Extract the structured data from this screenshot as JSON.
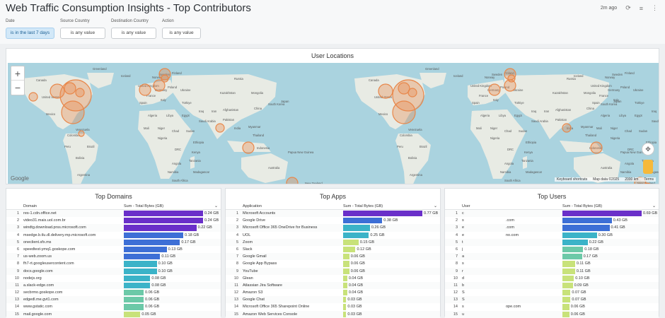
{
  "header": {
    "title": "Web Traffic Consumption Insights - Top Contributors",
    "updated": "2m ago"
  },
  "filters": [
    {
      "label": "Date",
      "value": "is in the last 7 days"
    },
    {
      "label": "Source Country",
      "value": "is any value"
    },
    {
      "label": "Destination Country",
      "value": "is any value"
    },
    {
      "label": "Action",
      "value": "is any value"
    }
  ],
  "map": {
    "title": "User Locations",
    "google": "Google",
    "footer": {
      "shortcuts": "Keyboard shortcuts",
      "mapdata": "Map data ©2025",
      "scale": "2000 km",
      "terms": "Terms"
    },
    "labels": {
      "world_a": [
        "Canada",
        "United States",
        "Mexico",
        "Venezuela",
        "Colombia",
        "Peru",
        "Brazil",
        "Bolivia",
        "Argentina",
        "Greenland",
        "Iceland",
        "Sweden",
        "Finland",
        "Norway",
        "United Kingdom",
        "Poland",
        "Ukraine",
        "Germany",
        "France",
        "Spain",
        "Italy",
        "Türkiye",
        "Algeria",
        "Libya",
        "Egypt",
        "Mali",
        "Niger",
        "Chad",
        "Sudan",
        "Nigeria",
        "Ethiopia",
        "DRC",
        "Kenya",
        "Tanzania",
        "Angola",
        "Namibia",
        "South Africa",
        "Madagascar",
        "Saudi Arabia",
        "Iraq",
        "Iran",
        "Afghanistan",
        "Pakistan",
        "India",
        "Kazakhstan",
        "Mongolia",
        "China",
        "Russia",
        "South Korea",
        "Japan",
        "Myanmar",
        "Thailand",
        "Indonesia",
        "Papua New Guinea",
        "Australia",
        "New Zealand"
      ],
      "world_b": [
        "Canada",
        "United States",
        "Mexico",
        "Venezuela",
        "Colombia",
        "Peru",
        "Brazil",
        "Bolivia",
        "Argentina",
        "Greenland",
        "Iceland",
        "Sweden",
        "Finland",
        "Norway",
        "United Kingdom",
        "Poland",
        "Ukraine",
        "Germany",
        "France",
        "Spain",
        "Italy",
        "Türkiye",
        "Algeria",
        "Libya",
        "Egypt",
        "Mali",
        "Niger",
        "Chad",
        "Sudan",
        "Nigeria",
        "Ethiopia",
        "DRC",
        "Kenya",
        "Tanzania",
        "Angola",
        "Namibia",
        "South Africa",
        "Madagascar",
        "Saudi Arabia",
        "Iraq",
        "Iran",
        "Afghanistan",
        "Pakistan",
        "India",
        "Kazakhstan",
        "Mongolia",
        "China",
        "Russia",
        "South Korea",
        "Japan",
        "Myanmar",
        "Thailand",
        "Indonesia",
        "Papua New Guinea",
        "Australia",
        "New Zealand"
      ],
      "world_c": [
        "Greenland",
        "Iceland",
        "Sweden",
        "Finland",
        "Norway",
        "United Kingdom",
        "Poland",
        "Ukraine",
        "Germany",
        "France",
        "Spain",
        "Italy",
        "Türkiye",
        "Algeria",
        "Libya",
        "Egypt",
        "Mali",
        "Niger",
        "Chad",
        "Sudan",
        "Nigeria",
        "Ethiopia",
        "DRC",
        "Kenya",
        "Tanzania",
        "Angola",
        "Namibia",
        "South Africa",
        "Madagascar",
        "Saudi Arabia",
        "Iraq",
        "Iran",
        "Afghanistan",
        "Pakistan",
        "India",
        "Kazakhstan",
        "Mongolia",
        "China",
        "Russia",
        "South Korea",
        "Japan",
        "Myanmar",
        "Thailand",
        "Indonesia",
        "Papua New Guinea",
        "Australia",
        "New Zealand"
      ]
    }
  },
  "colors": {
    "accent": "#e8874a",
    "bar_top": "#6a2fc9",
    "bar_mid": "#3bb3c8",
    "bar_low": "#c8e27a"
  },
  "tables": [
    {
      "title": "Top Domains",
      "col1": "Domain",
      "col2": "Sum - Total Bytes (GB)",
      "rows": [
        {
          "n": "1",
          "label": "res-1.cdn.office.net",
          "v": 0.24,
          "text": "0.24 GB"
        },
        {
          "n": "2",
          "label": "video31.mais.uol.com.br",
          "v": 0.24,
          "text": "0.24 GB"
        },
        {
          "n": "3",
          "label": "windtg.download.prss.microsoft.com",
          "v": 0.22,
          "text": "0.22 GB"
        },
        {
          "n": "4",
          "label": "msedge.b.tlu.dl.delivery.mp.microsoft.com",
          "v": 0.18,
          "text": "0.18 GB"
        },
        {
          "n": "5",
          "label": "oneclient.sfx.ms",
          "v": 0.17,
          "text": "0.17 GB"
        },
        {
          "n": "6",
          "label": "speedtest-ymq1.goskope.com",
          "v": 0.13,
          "text": "0.13 GB"
        },
        {
          "n": "7",
          "label": "us-web.zoom.us",
          "v": 0.11,
          "text": "0.11 GB"
        },
        {
          "n": "8",
          "label": "fh7-rt.googleusercontent.com",
          "v": 0.1,
          "text": "0.10 GB"
        },
        {
          "n": "9",
          "label": "docs.google.com",
          "v": 0.1,
          "text": "0.10 GB"
        },
        {
          "n": "10",
          "label": "nodejs.org",
          "v": 0.08,
          "text": "0.08 GB"
        },
        {
          "n": "11",
          "label": "a.slack-edge.com",
          "v": 0.08,
          "text": "0.08 GB"
        },
        {
          "n": "12",
          "label": "secbrmo.goskope.com",
          "v": 0.06,
          "text": "0.06 GB"
        },
        {
          "n": "13",
          "label": "edgedl.me.gvt1.com",
          "v": 0.06,
          "text": "0.06 GB"
        },
        {
          "n": "14",
          "label": "www.gstatic.com",
          "v": 0.06,
          "text": "0.06 GB"
        },
        {
          "n": "15",
          "label": "mail.google.com",
          "v": 0.05,
          "text": "0.05 GB"
        }
      ]
    },
    {
      "title": "Top Apps",
      "col1": "Application",
      "col2": "Sum - Total Bytes (GB)",
      "rows": [
        {
          "n": "1",
          "label": "Microsoft Accounts",
          "v": 0.77,
          "text": "0.77 GB"
        },
        {
          "n": "2",
          "label": "Google Drive",
          "v": 0.38,
          "text": "0.38 GB"
        },
        {
          "n": "3",
          "label": "Microsoft Office 365 OneDrive for Business",
          "v": 0.26,
          "text": "0.26 GB"
        },
        {
          "n": "4",
          "label": "UOL",
          "v": 0.25,
          "text": "0.25 GB"
        },
        {
          "n": "5",
          "label": "Zoom",
          "v": 0.15,
          "text": "0.15 GB"
        },
        {
          "n": "6",
          "label": "Slack",
          "v": 0.12,
          "text": "0.12 GB"
        },
        {
          "n": "7",
          "label": "Google Gmail",
          "v": 0.06,
          "text": "0.06 GB"
        },
        {
          "n": "8",
          "label": "Google App Bypass",
          "v": 0.06,
          "text": "0.06 GB"
        },
        {
          "n": "9",
          "label": "YouTube",
          "v": 0.06,
          "text": "0.06 GB"
        },
        {
          "n": "10",
          "label": "Glean",
          "v": 0.04,
          "text": "0.04 GB"
        },
        {
          "n": "11",
          "label": "Atlassian Jira Software",
          "v": 0.04,
          "text": "0.04 GB"
        },
        {
          "n": "12",
          "label": "Amazon S3",
          "v": 0.04,
          "text": "0.04 GB"
        },
        {
          "n": "13",
          "label": "Google Chat",
          "v": 0.03,
          "text": "0.03 GB"
        },
        {
          "n": "14",
          "label": "Microsoft Office 365 Sharepoint Online",
          "v": 0.03,
          "text": "0.03 GB"
        },
        {
          "n": "15",
          "label": "Amazon Web Services Console",
          "v": 0.03,
          "text": "0.03 GB"
        }
      ]
    },
    {
      "title": "Top Users",
      "col1": "User",
      "col2": "Sum - Total Bytes (GB)",
      "rows": [
        {
          "n": "1",
          "label": "c",
          "label2": "",
          "v": 0.69,
          "text": "0.69 GB"
        },
        {
          "n": "2",
          "label": "s",
          "label2": ".com",
          "v": 0.43,
          "text": "0.43 GB"
        },
        {
          "n": "3",
          "label": "e",
          "label2": ".com",
          "v": 0.41,
          "text": "0.41 GB"
        },
        {
          "n": "4",
          "label": "e",
          "label2": "no.com",
          "v": 0.3,
          "text": "0.30 GB"
        },
        {
          "n": "5",
          "label": "t",
          "label2": "",
          "v": 0.22,
          "text": "0.22 GB"
        },
        {
          "n": "6",
          "label": "j",
          "label2": "",
          "v": 0.18,
          "text": "0.18 GB"
        },
        {
          "n": "7",
          "label": "a",
          "label2": "",
          "v": 0.17,
          "text": "0.17 GB"
        },
        {
          "n": "8",
          "label": "s",
          "label2": "",
          "v": 0.11,
          "text": "0.11 GB"
        },
        {
          "n": "9",
          "label": "r",
          "label2": "",
          "v": 0.11,
          "text": "0.11 GB"
        },
        {
          "n": "10",
          "label": "d",
          "label2": "",
          "v": 0.1,
          "text": "0.10 GB"
        },
        {
          "n": "11",
          "label": "b",
          "label2": "",
          "v": 0.09,
          "text": "0.09 GB"
        },
        {
          "n": "12",
          "label": "S",
          "label2": "",
          "v": 0.07,
          "text": "0.07 GB"
        },
        {
          "n": "13",
          "label": "S",
          "label2": "",
          "v": 0.07,
          "text": "0.07 GB"
        },
        {
          "n": "14",
          "label": "s",
          "label2": "ope.com",
          "v": 0.06,
          "text": "0.06 GB"
        },
        {
          "n": "15",
          "label": "u",
          "label2": "",
          "v": 0.06,
          "text": "0.06 GB"
        }
      ]
    }
  ]
}
